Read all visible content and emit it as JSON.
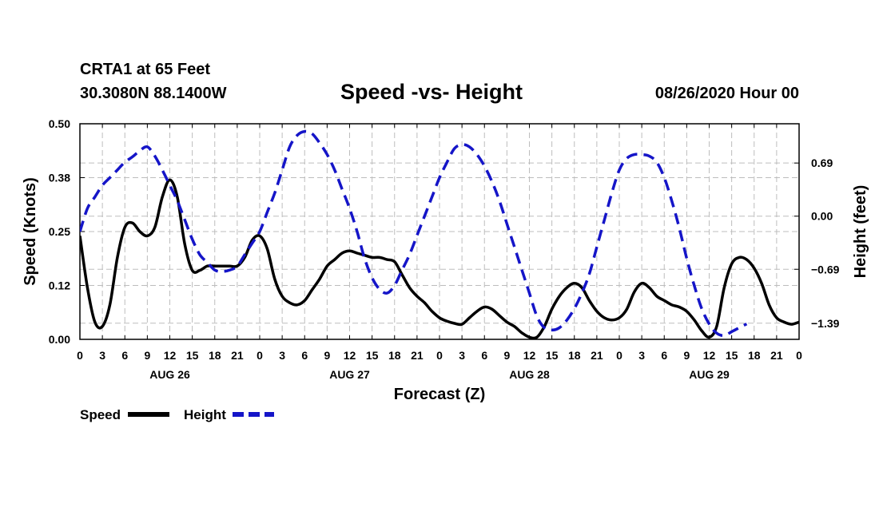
{
  "header": {
    "station": "CRTA1 at 65 Feet",
    "coords": "30.3080N 88.1400W",
    "issued": "08/26/2020 Hour 00"
  },
  "colors": {
    "speed": "#000000",
    "height": "#1515c8",
    "grid": "#bdbdbd"
  },
  "chart_data": {
    "type": "line",
    "title": "Speed -vs- Height",
    "xlabel": "Forecast (Z)",
    "ylabel": "Speed (Knots)",
    "y2label": "Height (feet)",
    "x_unit": "hours since 08/26/2020 00Z",
    "xlim": [
      0,
      96
    ],
    "ylim": [
      0,
      0.5
    ],
    "y2lim": [
      -1.6,
      1.2
    ],
    "x_tick_labels": [
      "0",
      "3",
      "6",
      "9",
      "12",
      "15",
      "18",
      "21",
      "0",
      "3",
      "6",
      "9",
      "12",
      "15",
      "18",
      "21",
      "0",
      "3",
      "6",
      "9",
      "12",
      "15",
      "18",
      "21",
      "0",
      "3",
      "6",
      "9",
      "12",
      "15",
      "18",
      "21",
      "0"
    ],
    "day_labels": [
      {
        "label": "AUG 26",
        "x": 12
      },
      {
        "label": "AUG 27",
        "x": 36
      },
      {
        "label": "AUG 28",
        "x": 60
      },
      {
        "label": "AUG 29",
        "x": 84
      }
    ],
    "y_ticks": [
      {
        "value": 0.0,
        "label": "0.00"
      },
      {
        "value": 0.125,
        "label": "0.12"
      },
      {
        "value": 0.25,
        "label": "0.25"
      },
      {
        "value": 0.375,
        "label": "0.38"
      },
      {
        "value": 0.5,
        "label": "0.50"
      }
    ],
    "y2_ticks": [
      {
        "value": 0.69,
        "label": "0.69"
      },
      {
        "value": 0.0,
        "label": "0.00"
      },
      {
        "value": -0.69,
        "label": "−0.69"
      },
      {
        "value": -1.39,
        "label": "−1.39"
      }
    ],
    "series": [
      {
        "name": "Speed",
        "axis": "left",
        "style": "solid",
        "points": [
          [
            0,
            0.24
          ],
          [
            1,
            0.12
          ],
          [
            2,
            0.04
          ],
          [
            3,
            0.03
          ],
          [
            4,
            0.08
          ],
          [
            5,
            0.19
          ],
          [
            6,
            0.26
          ],
          [
            7,
            0.27
          ],
          [
            8,
            0.25
          ],
          [
            9,
            0.24
          ],
          [
            10,
            0.26
          ],
          [
            11,
            0.33
          ],
          [
            12,
            0.37
          ],
          [
            13,
            0.33
          ],
          [
            14,
            0.22
          ],
          [
            15,
            0.16
          ],
          [
            16,
            0.16
          ],
          [
            17,
            0.17
          ],
          [
            18,
            0.17
          ],
          [
            19,
            0.17
          ],
          [
            20,
            0.17
          ],
          [
            21,
            0.17
          ],
          [
            22,
            0.19
          ],
          [
            23,
            0.23
          ],
          [
            24,
            0.24
          ],
          [
            25,
            0.21
          ],
          [
            26,
            0.14
          ],
          [
            27,
            0.1
          ],
          [
            28,
            0.085
          ],
          [
            29,
            0.08
          ],
          [
            30,
            0.09
          ],
          [
            31,
            0.115
          ],
          [
            32,
            0.14
          ],
          [
            33,
            0.17
          ],
          [
            34,
            0.185
          ],
          [
            35,
            0.2
          ],
          [
            36,
            0.205
          ],
          [
            37,
            0.2
          ],
          [
            38,
            0.195
          ],
          [
            39,
            0.19
          ],
          [
            40,
            0.19
          ],
          [
            41,
            0.185
          ],
          [
            42,
            0.18
          ],
          [
            43,
            0.15
          ],
          [
            44,
            0.12
          ],
          [
            45,
            0.1
          ],
          [
            46,
            0.085
          ],
          [
            47,
            0.065
          ],
          [
            48,
            0.05
          ],
          [
            49,
            0.042
          ],
          [
            50,
            0.037
          ],
          [
            51,
            0.035
          ],
          [
            52,
            0.05
          ],
          [
            53,
            0.065
          ],
          [
            54,
            0.075
          ],
          [
            55,
            0.07
          ],
          [
            56,
            0.055
          ],
          [
            57,
            0.04
          ],
          [
            58,
            0.03
          ],
          [
            59,
            0.015
          ],
          [
            60,
            0.005
          ],
          [
            61,
            0.005
          ],
          [
            62,
            0.03
          ],
          [
            63,
            0.07
          ],
          [
            64,
            0.1
          ],
          [
            65,
            0.12
          ],
          [
            66,
            0.13
          ],
          [
            67,
            0.12
          ],
          [
            68,
            0.09
          ],
          [
            69,
            0.065
          ],
          [
            70,
            0.05
          ],
          [
            71,
            0.045
          ],
          [
            72,
            0.05
          ],
          [
            73,
            0.07
          ],
          [
            74,
            0.11
          ],
          [
            75,
            0.13
          ],
          [
            76,
            0.12
          ],
          [
            77,
            0.1
          ],
          [
            78,
            0.09
          ],
          [
            79,
            0.08
          ],
          [
            80,
            0.075
          ],
          [
            81,
            0.065
          ],
          [
            82,
            0.045
          ],
          [
            83,
            0.02
          ],
          [
            84,
            0.005
          ],
          [
            85,
            0.03
          ],
          [
            86,
            0.12
          ],
          [
            87,
            0.175
          ],
          [
            88,
            0.19
          ],
          [
            89,
            0.185
          ],
          [
            90,
            0.165
          ],
          [
            91,
            0.13
          ],
          [
            92,
            0.08
          ],
          [
            93,
            0.05
          ],
          [
            94,
            0.04
          ],
          [
            95,
            0.035
          ],
          [
            96,
            0.04
          ]
        ]
      },
      {
        "name": "Height",
        "axis": "right",
        "style": "dashed",
        "points": [
          [
            0,
            -0.2
          ],
          [
            1,
            0.1
          ],
          [
            2,
            0.25
          ],
          [
            3,
            0.4
          ],
          [
            4,
            0.5
          ],
          [
            5,
            0.6
          ],
          [
            6,
            0.7
          ],
          [
            7,
            0.77
          ],
          [
            8,
            0.85
          ],
          [
            9,
            0.9
          ],
          [
            10,
            0.78
          ],
          [
            11,
            0.6
          ],
          [
            12,
            0.4
          ],
          [
            13,
            0.2
          ],
          [
            14,
            -0.05
          ],
          [
            15,
            -0.3
          ],
          [
            16,
            -0.5
          ],
          [
            17,
            -0.6
          ],
          [
            18,
            -0.7
          ],
          [
            19,
            -0.72
          ],
          [
            20,
            -0.7
          ],
          [
            21,
            -0.65
          ],
          [
            22,
            -0.5
          ],
          [
            23,
            -0.35
          ],
          [
            24,
            -0.2
          ],
          [
            25,
            0.05
          ],
          [
            26,
            0.3
          ],
          [
            27,
            0.6
          ],
          [
            28,
            0.9
          ],
          [
            29,
            1.05
          ],
          [
            30,
            1.1
          ],
          [
            31,
            1.07
          ],
          [
            32,
            0.95
          ],
          [
            33,
            0.8
          ],
          [
            34,
            0.6
          ],
          [
            35,
            0.35
          ],
          [
            36,
            0.1
          ],
          [
            37,
            -0.2
          ],
          [
            38,
            -0.55
          ],
          [
            39,
            -0.8
          ],
          [
            40,
            -0.95
          ],
          [
            41,
            -1.0
          ],
          [
            42,
            -0.9
          ],
          [
            43,
            -0.7
          ],
          [
            44,
            -0.5
          ],
          [
            45,
            -0.25
          ],
          [
            46,
            0.0
          ],
          [
            47,
            0.25
          ],
          [
            48,
            0.5
          ],
          [
            49,
            0.7
          ],
          [
            50,
            0.88
          ],
          [
            51,
            0.93
          ],
          [
            52,
            0.9
          ],
          [
            53,
            0.8
          ],
          [
            54,
            0.65
          ],
          [
            55,
            0.45
          ],
          [
            56,
            0.2
          ],
          [
            57,
            -0.1
          ],
          [
            58,
            -0.4
          ],
          [
            59,
            -0.7
          ],
          [
            60,
            -1.0
          ],
          [
            61,
            -1.3
          ],
          [
            62,
            -1.45
          ],
          [
            63,
            -1.48
          ],
          [
            64,
            -1.45
          ],
          [
            65,
            -1.35
          ],
          [
            66,
            -1.2
          ],
          [
            67,
            -1.0
          ],
          [
            68,
            -0.75
          ],
          [
            69,
            -0.4
          ],
          [
            70,
            -0.05
          ],
          [
            71,
            0.3
          ],
          [
            72,
            0.6
          ],
          [
            73,
            0.75
          ],
          [
            74,
            0.8
          ],
          [
            75,
            0.8
          ],
          [
            76,
            0.78
          ],
          [
            77,
            0.7
          ],
          [
            78,
            0.5
          ],
          [
            79,
            0.2
          ],
          [
            80,
            -0.15
          ],
          [
            81,
            -0.55
          ],
          [
            82,
            -0.9
          ],
          [
            83,
            -1.2
          ],
          [
            84,
            -1.4
          ],
          [
            85,
            -1.52
          ],
          [
            86,
            -1.55
          ],
          [
            87,
            -1.5
          ],
          [
            88,
            -1.45
          ],
          [
            89,
            -1.4
          ]
        ]
      }
    ],
    "legend": [
      "Speed",
      "Height"
    ]
  }
}
